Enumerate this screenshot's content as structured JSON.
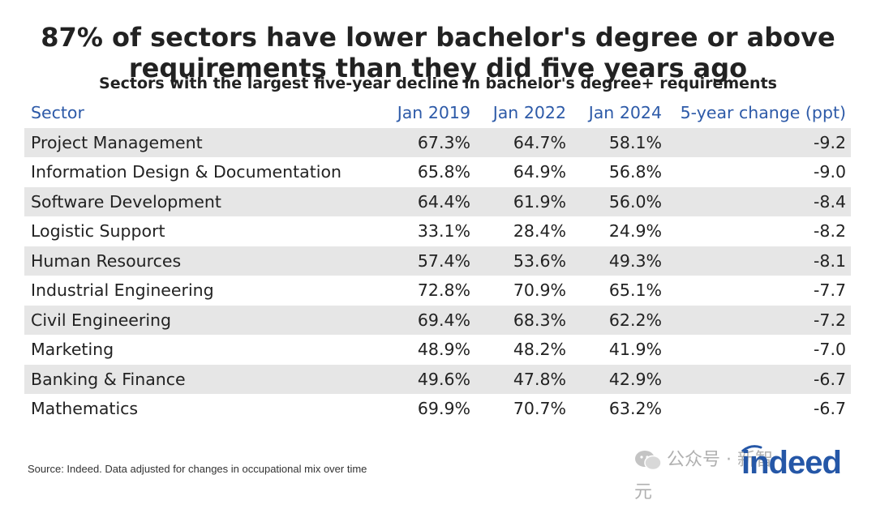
{
  "title_lines": [
    "87% of sectors have lower bachelor's degree or above",
    "requirements than they did five years ago"
  ],
  "subtitle": "Sectors with the largest five-year decline in bachelor's degree+ requirements",
  "source": "Source: Indeed. Data adjusted for changes in occupational mix over time",
  "watermark_text": "公众号 · 新智元",
  "logo_text": "indeed",
  "colors": {
    "header": "#2d5aa8",
    "shade": "#e6e6e6",
    "logo": "#2557a7"
  },
  "chart_data": {
    "type": "table",
    "columns": [
      "Sector",
      "Jan 2019",
      "Jan 2022",
      "Jan 2024",
      "5-year change (ppt)"
    ],
    "rows": [
      [
        "Project Management",
        "67.3%",
        "64.7%",
        "58.1%",
        "-9.2"
      ],
      [
        "Information Design & Documentation",
        "65.8%",
        "64.9%",
        "56.8%",
        "-9.0"
      ],
      [
        "Software Development",
        "64.4%",
        "61.9%",
        "56.0%",
        "-8.4"
      ],
      [
        "Logistic Support",
        "33.1%",
        "28.4%",
        "24.9%",
        "-8.2"
      ],
      [
        "Human Resources",
        "57.4%",
        "53.6%",
        "49.3%",
        "-8.1"
      ],
      [
        "Industrial Engineering",
        "72.8%",
        "70.9%",
        "65.1%",
        "-7.7"
      ],
      [
        "Civil Engineering",
        "69.4%",
        "68.3%",
        "62.2%",
        "-7.2"
      ],
      [
        "Marketing",
        "48.9%",
        "48.2%",
        "41.9%",
        "-7.0"
      ],
      [
        "Banking & Finance",
        "49.6%",
        "47.8%",
        "42.9%",
        "-6.7"
      ],
      [
        "Mathematics",
        "69.9%",
        "70.7%",
        "63.2%",
        "-6.7"
      ]
    ]
  }
}
